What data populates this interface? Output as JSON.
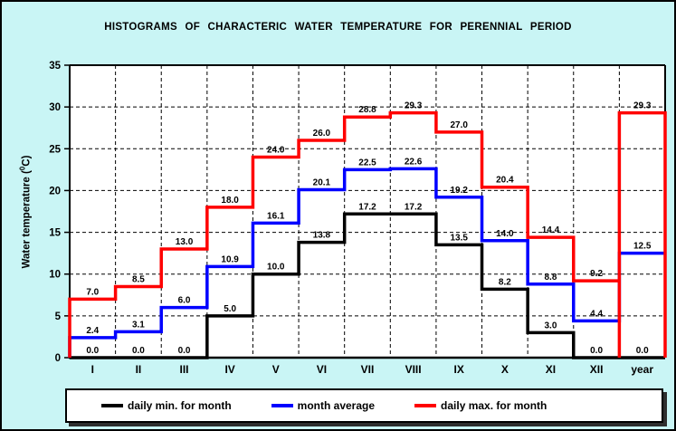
{
  "window": {
    "background": "#c9f5f5",
    "border_color": "#000000",
    "plot_background": "#ffffff",
    "gridline_color": "#000000"
  },
  "y_axis": {
    "label_prefix": "Water temperature (",
    "label_sup": "0",
    "label_suffix": "C)"
  },
  "chart_data": {
    "type": "step-histogram",
    "title": "HISTOGRAMS OF CHARACTERIC WATER TEMPERATURE FOR PERENNIAL PERIOD",
    "xlabel": "",
    "ylabel": "Water temperature (⁰C)",
    "ylim": [
      0,
      35
    ],
    "yticks": [
      0,
      5,
      10,
      15,
      20,
      25,
      30,
      35
    ],
    "grid": "dashed",
    "legend_position": "bottom",
    "categories": [
      "I",
      "II",
      "III",
      "IV",
      "V",
      "VI",
      "VII",
      "VIII",
      "IX",
      "X",
      "XI",
      "XII",
      "year"
    ],
    "series": [
      {
        "name": "daily-min",
        "label": "daily min. for month",
        "color": "#000000",
        "values": [
          0.0,
          0.0,
          0.0,
          5.0,
          10.0,
          13.8,
          17.2,
          17.2,
          13.5,
          8.2,
          3.0,
          0.0,
          0.0
        ]
      },
      {
        "name": "month-average",
        "label": "month average",
        "color": "#0000ff",
        "values": [
          2.4,
          3.1,
          6.0,
          10.9,
          16.1,
          20.1,
          22.5,
          22.6,
          19.2,
          14.0,
          8.8,
          4.4,
          12.5
        ]
      },
      {
        "name": "daily-max",
        "label": "daily max. for month",
        "color": "#ff0000",
        "values": [
          7.0,
          8.5,
          13.0,
          18.0,
          24.0,
          26.0,
          28.8,
          29.3,
          27.0,
          20.4,
          14.4,
          9.2,
          29.3
        ],
        "year_column_full_box": true
      }
    ]
  }
}
